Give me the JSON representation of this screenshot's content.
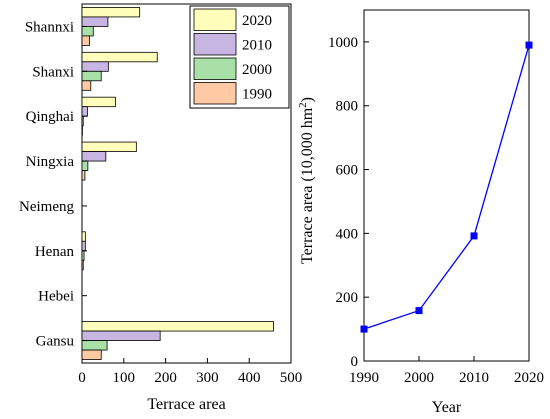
{
  "chart_data": [
    {
      "type": "bar",
      "orientation": "horizontal",
      "xlabel": "Terrace area",
      "ylabel": "",
      "xlim": [
        0,
        500
      ],
      "xticks": [
        "0",
        "100",
        "200",
        "300",
        "400",
        "500"
      ],
      "categories": [
        "Shannxi",
        "Shanxi",
        "Qinghai",
        "Ningxia",
        "Neimeng",
        "Henan",
        "Hebei",
        "Gansu"
      ],
      "series": [
        {
          "name": "2020",
          "color": "#FFFFBB",
          "values": [
            138,
            180,
            80,
            130,
            0,
            8,
            0,
            458
          ]
        },
        {
          "name": "2010",
          "color": "#C7B6E2",
          "values": [
            62,
            63,
            13,
            57,
            0,
            8,
            0,
            187
          ]
        },
        {
          "name": "2000",
          "color": "#A8E0A8",
          "values": [
            27,
            46,
            3,
            14,
            0,
            5,
            0,
            60
          ]
        },
        {
          "name": "1990",
          "color": "#FFC9A3",
          "values": [
            18,
            21,
            1,
            7,
            0,
            3,
            0,
            46
          ]
        }
      ],
      "legend_position": "top-right",
      "grid": false
    },
    {
      "type": "line",
      "xlabel": "Year",
      "ylabel": "Terrace area (10,000 hm",
      "ylabel_sup": "2",
      "ylabel_end": ")",
      "x": [
        1990,
        2000,
        2010,
        2020
      ],
      "xticks": [
        "1990",
        "2000",
        "2010",
        "2020"
      ],
      "yticks": [
        "0",
        "200",
        "400",
        "600",
        "800",
        "1000"
      ],
      "series": [
        {
          "color": "#0000FF",
          "values": [
            100,
            158,
            392,
            990
          ]
        }
      ],
      "xlim": [
        1990,
        2020
      ],
      "ylim": [
        0,
        1100
      ],
      "grid": false
    }
  ]
}
